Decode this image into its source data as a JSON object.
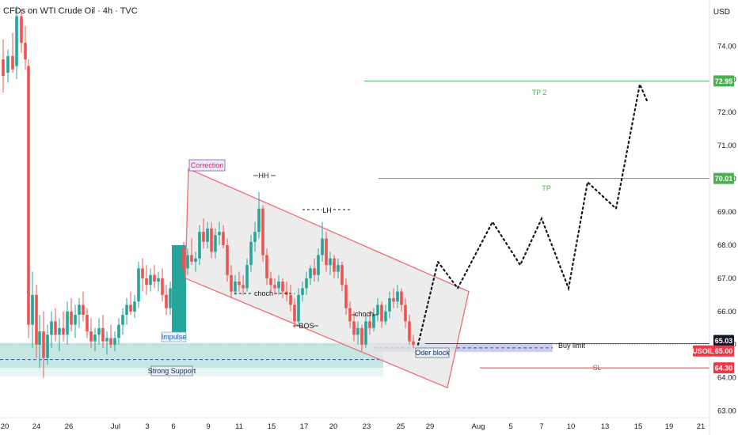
{
  "header": {
    "symbol": "CFDs on WTI Crude Oil · 4h · TVC",
    "currency": "USD"
  },
  "colors": {
    "up": "#26a69a",
    "down": "#ef5350",
    "green_line": "#4caf50",
    "red_line": "#f23645",
    "channel": "#f06a77"
  },
  "chart_data": {
    "type": "candlestick",
    "ylim": [
      62.8,
      75.2
    ],
    "y_ticks": [
      "74.00",
      "73.00",
      "72.00",
      "71.00",
      "70.00",
      "69.00",
      "68.00",
      "67.00",
      "66.00",
      "65.00",
      "64.00",
      "63.00"
    ],
    "x_ticks": [
      "20",
      "24",
      "26",
      "Jul",
      "3",
      "6",
      "9",
      "11",
      "15",
      "17",
      "20",
      "23",
      "25",
      "29",
      "Aug",
      "5",
      "7",
      "10",
      "13",
      "15",
      "19",
      "21"
    ],
    "price_tags": [
      {
        "label": "72.95",
        "value": 72.95,
        "color": "#4caf50"
      },
      {
        "label": "70.01",
        "value": 70.01,
        "color": "#4caf50"
      },
      {
        "label": "65.03",
        "value": 65.03,
        "color": "#131722"
      },
      {
        "label": "65.00",
        "value": 65.0,
        "color": "#f23645",
        "prefix": "USOIL"
      },
      {
        "label": "64.30",
        "value": 64.3,
        "color": "#f23645"
      }
    ],
    "levels": [
      {
        "name": "TP 2",
        "value": 72.95
      },
      {
        "name": "TP",
        "value": 70.01
      },
      {
        "name": "SL",
        "value": 64.3
      },
      {
        "name": "Buy limit",
        "value": 65.0
      }
    ],
    "annotations": [
      "Correction",
      "HH",
      "LH",
      "choch",
      "choch",
      "BOS",
      "Impulse",
      "Strong Support",
      "Oder block",
      "Buy limit",
      "TP 2",
      "TP",
      "SL"
    ],
    "projection": [
      [
        528,
        65.0
      ],
      [
        553,
        67.5
      ],
      [
        578,
        66.7
      ],
      [
        622,
        68.7
      ],
      [
        657,
        67.4
      ],
      [
        684,
        68.8
      ],
      [
        718,
        66.7
      ],
      [
        742,
        69.9
      ],
      [
        778,
        69.1
      ],
      [
        808,
        72.85
      ],
      [
        818,
        72.3
      ]
    ],
    "candles": [
      [
        4,
        73.6,
        74.2,
        72.6,
        73.1
      ],
      [
        10,
        73.2,
        73.9,
        72.9,
        73.7
      ],
      [
        16,
        73.7,
        74.4,
        73.2,
        73.3
      ],
      [
        21,
        73.4,
        75.2,
        73.0,
        74.9
      ],
      [
        27,
        74.9,
        75.1,
        73.8,
        74.1
      ],
      [
        32,
        74.1,
        74.6,
        73.3,
        73.6
      ],
      [
        36,
        73.4,
        73.6,
        65.2,
        65.6
      ],
      [
        41,
        65.6,
        67.2,
        64.9,
        66.5
      ],
      [
        46,
        66.5,
        66.8,
        64.6,
        65.0
      ],
      [
        50,
        65.0,
        65.9,
        64.3,
        65.4
      ],
      [
        55,
        65.4,
        66.0,
        64.0,
        64.6
      ],
      [
        60,
        64.6,
        65.6,
        64.4,
        65.3
      ],
      [
        65,
        65.3,
        66.0,
        64.9,
        65.7
      ],
      [
        70,
        65.7,
        66.1,
        65.1,
        65.3
      ],
      [
        75,
        65.3,
        65.8,
        64.8,
        65.5
      ],
      [
        80,
        65.5,
        66.0,
        65.1,
        65.3
      ],
      [
        85,
        65.3,
        66.3,
        65.0,
        66.0
      ],
      [
        90,
        66.0,
        66.4,
        65.4,
        65.6
      ],
      [
        95,
        65.6,
        66.2,
        65.2,
        65.9
      ],
      [
        100,
        65.9,
        66.4,
        65.5,
        66.2
      ],
      [
        105,
        66.2,
        66.6,
        65.7,
        65.9
      ],
      [
        110,
        65.9,
        66.1,
        65.2,
        65.4
      ],
      [
        115,
        65.4,
        65.8,
        64.9,
        65.1
      ],
      [
        120,
        65.1,
        65.5,
        64.8,
        65.3
      ],
      [
        125,
        65.3,
        65.8,
        65.0,
        65.5
      ],
      [
        130,
        65.5,
        65.9,
        64.9,
        65.1
      ],
      [
        135,
        65.1,
        65.4,
        64.7,
        65.2
      ],
      [
        140,
        65.2,
        65.6,
        64.9,
        65.0
      ],
      [
        145,
        65.0,
        65.4,
        64.8,
        65.2
      ],
      [
        150,
        65.2,
        65.8,
        65.0,
        65.6
      ],
      [
        155,
        65.6,
        66.1,
        65.3,
        65.9
      ],
      [
        160,
        65.9,
        66.4,
        65.6,
        66.2
      ],
      [
        165,
        66.2,
        66.6,
        65.9,
        66.0
      ],
      [
        170,
        66.0,
        66.5,
        65.8,
        66.3
      ],
      [
        175,
        66.3,
        67.5,
        66.1,
        67.3
      ],
      [
        180,
        67.3,
        67.6,
        66.6,
        67.0
      ],
      [
        185,
        67.0,
        67.4,
        66.5,
        66.8
      ],
      [
        190,
        66.8,
        67.3,
        66.6,
        67.1
      ],
      [
        195,
        67.1,
        67.4,
        66.7,
        66.9
      ],
      [
        200,
        66.9,
        67.2,
        66.6,
        67.0
      ],
      [
        205,
        67.0,
        67.3,
        66.3,
        66.5
      ],
      [
        210,
        66.5,
        66.8,
        65.9,
        66.1
      ],
      [
        215,
        66.1,
        66.9,
        65.9,
        66.7
      ],
      [
        227,
        66.0,
        68.0,
        65.3,
        67.9
      ],
      [
        232,
        67.9,
        68.1,
        67.1,
        67.3
      ],
      [
        237,
        67.3,
        67.9,
        67.1,
        67.7
      ],
      [
        242,
        67.7,
        68.2,
        67.4,
        67.5
      ],
      [
        247,
        67.5,
        67.8,
        67.2,
        67.6
      ],
      [
        252,
        67.6,
        68.6,
        67.4,
        68.4
      ],
      [
        257,
        68.4,
        68.8,
        67.9,
        68.1
      ],
      [
        262,
        68.1,
        68.7,
        67.9,
        68.5
      ],
      [
        267,
        68.5,
        68.7,
        67.6,
        67.8
      ],
      [
        272,
        67.8,
        68.5,
        67.6,
        68.3
      ],
      [
        277,
        68.3,
        68.7,
        68.0,
        68.4
      ],
      [
        282,
        68.4,
        68.6,
        67.9,
        68.0
      ],
      [
        287,
        68.0,
        68.2,
        66.9,
        67.1
      ],
      [
        292,
        67.1,
        67.4,
        66.4,
        66.6
      ],
      [
        297,
        66.6,
        67.1,
        66.5,
        66.9
      ],
      [
        302,
        66.9,
        67.2,
        66.6,
        66.8
      ],
      [
        307,
        66.8,
        67.1,
        66.5,
        66.7
      ],
      [
        312,
        66.7,
        67.6,
        66.6,
        67.4
      ],
      [
        317,
        67.4,
        68.3,
        67.2,
        68.1
      ],
      [
        322,
        68.1,
        68.7,
        67.8,
        68.4
      ],
      [
        327,
        68.4,
        69.6,
        68.2,
        69.1
      ],
      [
        332,
        69.1,
        69.2,
        67.5,
        67.7
      ],
      [
        337,
        67.7,
        67.9,
        66.8,
        67.0
      ],
      [
        342,
        67.0,
        67.2,
        66.6,
        66.8
      ],
      [
        347,
        66.8,
        67.0,
        66.5,
        66.7
      ],
      [
        352,
        66.7,
        67.1,
        66.5,
        66.9
      ],
      [
        357,
        66.9,
        67.0,
        66.4,
        66.6
      ],
      [
        362,
        66.6,
        66.9,
        66.3,
        66.5
      ],
      [
        367,
        66.5,
        66.8,
        66.0,
        66.2
      ],
      [
        372,
        66.2,
        66.4,
        65.5,
        65.7
      ],
      [
        377,
        65.7,
        66.7,
        65.6,
        66.5
      ],
      [
        382,
        66.5,
        66.9,
        66.3,
        66.7
      ],
      [
        387,
        66.7,
        67.2,
        66.5,
        67.0
      ],
      [
        392,
        67.0,
        67.4,
        66.8,
        67.3
      ],
      [
        397,
        67.3,
        67.6,
        66.9,
        67.1
      ],
      [
        402,
        67.1,
        67.9,
        66.9,
        67.7
      ],
      [
        407,
        67.7,
        68.7,
        67.5,
        68.2
      ],
      [
        412,
        68.2,
        68.4,
        67.2,
        67.4
      ],
      [
        417,
        67.4,
        67.8,
        67.1,
        67.6
      ],
      [
        422,
        67.6,
        67.7,
        67.0,
        67.2
      ],
      [
        427,
        67.2,
        67.6,
        67.0,
        67.4
      ],
      [
        432,
        67.4,
        67.5,
        66.6,
        66.8
      ],
      [
        437,
        66.8,
        67.0,
        65.9,
        66.1
      ],
      [
        442,
        66.1,
        66.3,
        65.5,
        65.7
      ],
      [
        447,
        65.7,
        66.0,
        65.1,
        65.3
      ],
      [
        452,
        65.3,
        65.7,
        65.0,
        65.5
      ],
      [
        457,
        65.5,
        65.6,
        64.8,
        65.0
      ],
      [
        462,
        65.0,
        65.9,
        64.9,
        65.7
      ],
      [
        467,
        65.7,
        66.0,
        65.3,
        65.5
      ],
      [
        472,
        65.5,
        66.1,
        65.4,
        65.9
      ],
      [
        477,
        65.9,
        66.4,
        65.7,
        66.2
      ],
      [
        482,
        66.2,
        66.3,
        65.5,
        65.7
      ],
      [
        487,
        65.7,
        66.2,
        65.6,
        66.0
      ],
      [
        492,
        66.0,
        66.6,
        65.8,
        66.4
      ],
      [
        497,
        66.4,
        66.7,
        66.1,
        66.3
      ],
      [
        502,
        66.3,
        66.8,
        66.1,
        66.6
      ],
      [
        507,
        66.6,
        66.7,
        66.0,
        66.2
      ],
      [
        512,
        66.2,
        66.4,
        65.5,
        65.7
      ],
      [
        517,
        65.7,
        65.9,
        65.0,
        65.1
      ],
      [
        522,
        65.1,
        65.3,
        64.9,
        65.0
      ]
    ]
  }
}
